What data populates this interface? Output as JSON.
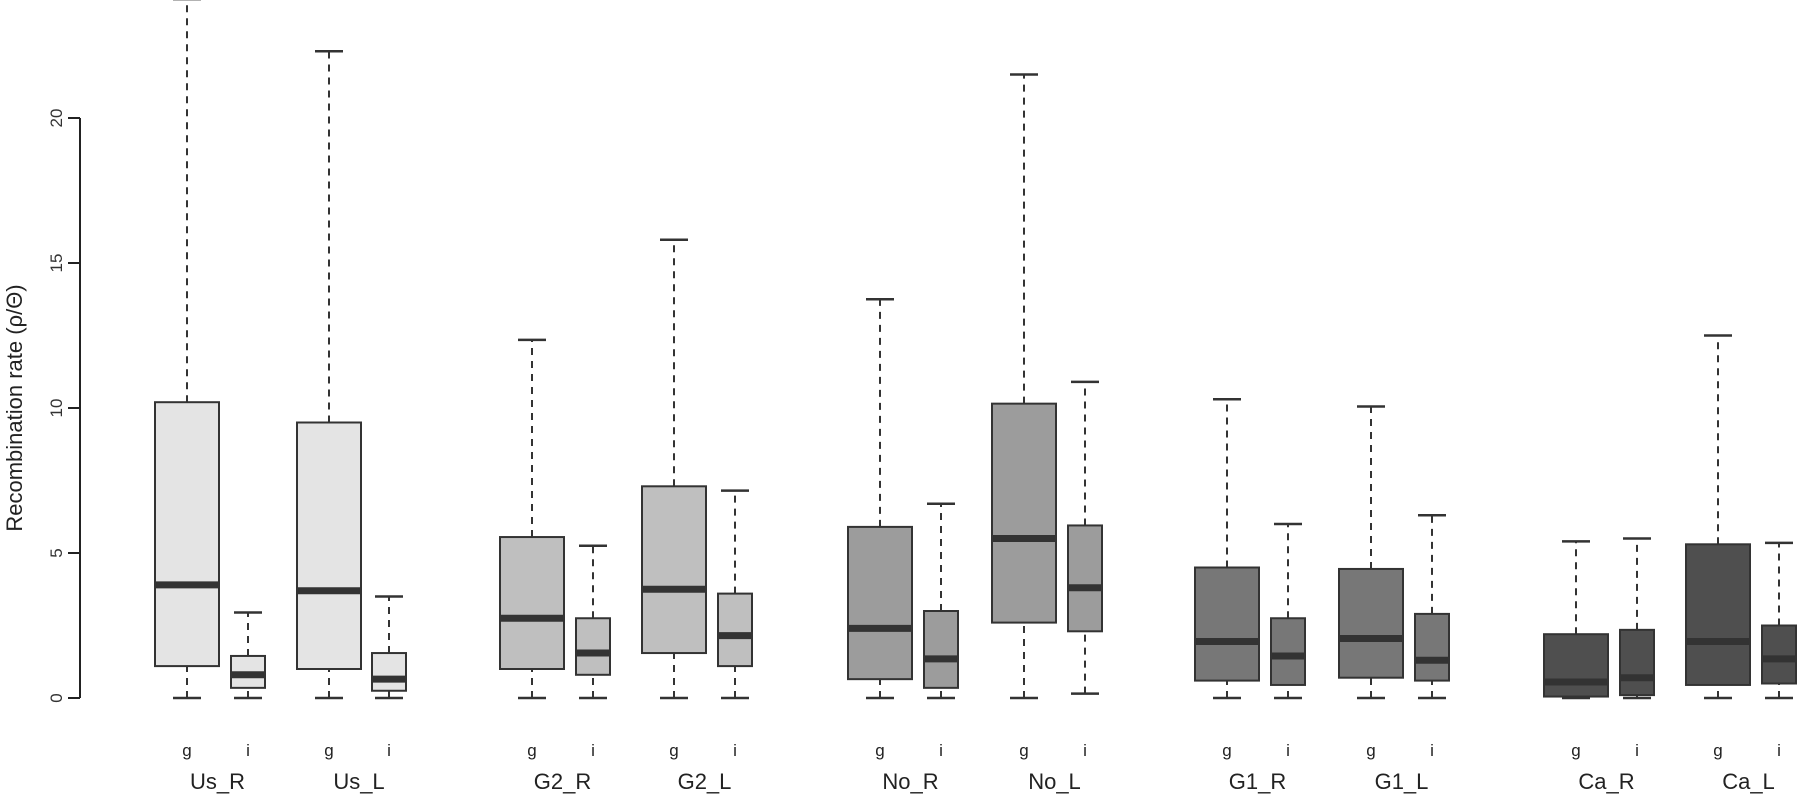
{
  "chart_data": {
    "type": "box",
    "title": "",
    "xlabel": "",
    "ylabel": "Recombination rate (ρ/Θ)",
    "ylim": [
      0,
      24
    ],
    "yticks": [
      0,
      5,
      10,
      15,
      20
    ],
    "subgroups": [
      "g",
      "i"
    ],
    "groups": [
      {
        "label": "Us_R",
        "fill": "#e4e4e4",
        "boxes": [
          {
            "sub": "g",
            "min": 0,
            "q1": 1.1,
            "median": 3.9,
            "q3": 10.2,
            "max": 24.1
          },
          {
            "sub": "i",
            "min": 0,
            "q1": 0.35,
            "median": 0.8,
            "q3": 1.45,
            "max": 2.95
          }
        ]
      },
      {
        "label": "Us_L",
        "fill": "#e4e4e4",
        "boxes": [
          {
            "sub": "g",
            "min": 0,
            "q1": 1.0,
            "median": 3.7,
            "q3": 9.5,
            "max": 22.3
          },
          {
            "sub": "i",
            "min": 0,
            "q1": 0.25,
            "median": 0.65,
            "q3": 1.55,
            "max": 3.5
          }
        ]
      },
      {
        "label": "G2_R",
        "fill": "#bfbfbf",
        "boxes": [
          {
            "sub": "g",
            "min": 0,
            "q1": 1.0,
            "median": 2.75,
            "q3": 5.55,
            "max": 12.35
          },
          {
            "sub": "i",
            "min": 0,
            "q1": 0.8,
            "median": 1.55,
            "q3": 2.75,
            "max": 5.25
          }
        ]
      },
      {
        "label": "G2_L",
        "fill": "#bfbfbf",
        "boxes": [
          {
            "sub": "g",
            "min": 0,
            "q1": 1.55,
            "median": 3.75,
            "q3": 7.3,
            "max": 15.8
          },
          {
            "sub": "i",
            "min": 0,
            "q1": 1.1,
            "median": 2.15,
            "q3": 3.6,
            "max": 7.15
          }
        ]
      },
      {
        "label": "No_R",
        "fill": "#9c9c9c",
        "boxes": [
          {
            "sub": "g",
            "min": 0,
            "q1": 0.65,
            "median": 2.4,
            "q3": 5.9,
            "max": 13.75
          },
          {
            "sub": "i",
            "min": 0,
            "q1": 0.35,
            "median": 1.35,
            "q3": 3.0,
            "max": 6.7
          }
        ]
      },
      {
        "label": "No_L",
        "fill": "#9c9c9c",
        "boxes": [
          {
            "sub": "g",
            "min": 0,
            "q1": 2.6,
            "median": 5.5,
            "q3": 10.15,
            "max": 21.5
          },
          {
            "sub": "i",
            "min": 0.15,
            "q1": 2.3,
            "median": 3.8,
            "q3": 5.95,
            "max": 10.9
          }
        ]
      },
      {
        "label": "G1_R",
        "fill": "#777777",
        "boxes": [
          {
            "sub": "g",
            "min": 0,
            "q1": 0.6,
            "median": 1.95,
            "q3": 4.5,
            "max": 10.3
          },
          {
            "sub": "i",
            "min": 0,
            "q1": 0.45,
            "median": 1.45,
            "q3": 2.75,
            "max": 6.0
          }
        ]
      },
      {
        "label": "G1_L",
        "fill": "#777777",
        "boxes": [
          {
            "sub": "g",
            "min": 0,
            "q1": 0.7,
            "median": 2.05,
            "q3": 4.45,
            "max": 10.05
          },
          {
            "sub": "i",
            "min": 0,
            "q1": 0.6,
            "median": 1.3,
            "q3": 2.9,
            "max": 6.3
          }
        ]
      },
      {
        "label": "Ca_R",
        "fill": "#4f4f4f",
        "boxes": [
          {
            "sub": "g",
            "min": 0,
            "q1": 0.05,
            "median": 0.55,
            "q3": 2.2,
            "max": 5.4
          },
          {
            "sub": "i",
            "min": 0,
            "q1": 0.1,
            "median": 0.7,
            "q3": 2.35,
            "max": 5.5
          }
        ]
      },
      {
        "label": "Ca_L",
        "fill": "#4f4f4f",
        "boxes": [
          {
            "sub": "g",
            "min": 0,
            "q1": 0.45,
            "median": 1.95,
            "q3": 5.3,
            "max": 12.5
          },
          {
            "sub": "i",
            "min": 0,
            "q1": 0.5,
            "median": 1.35,
            "q3": 2.5,
            "max": 5.35
          }
        ]
      }
    ],
    "colors": {
      "stroke": "#333333",
      "median": "#333333",
      "axis": "#222222"
    },
    "grid": false,
    "legend": "none"
  }
}
